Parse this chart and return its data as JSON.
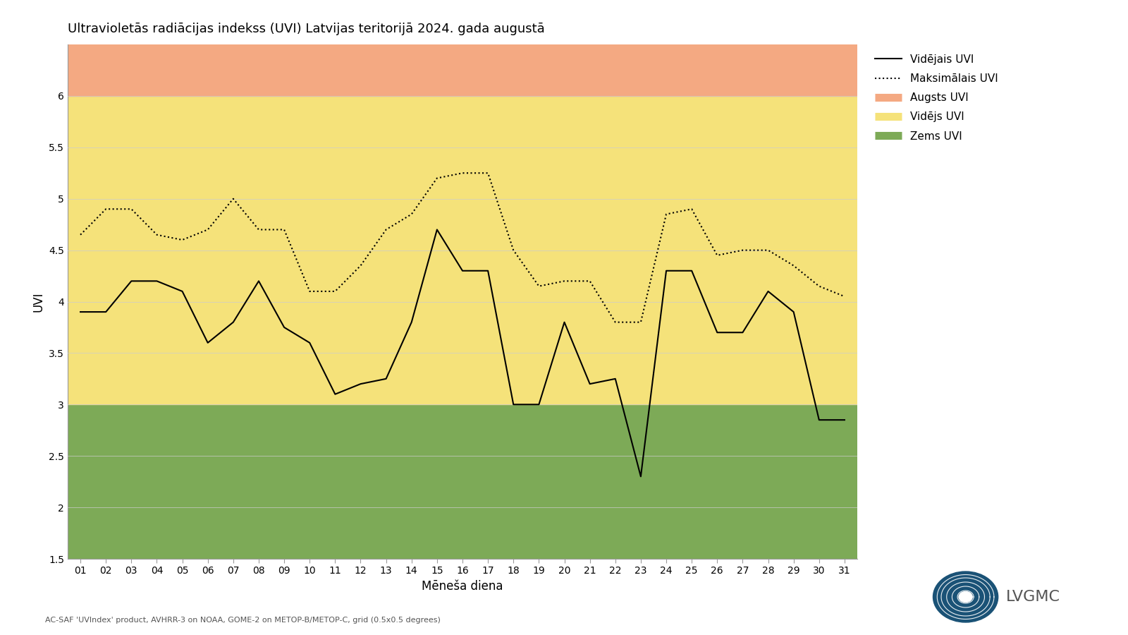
{
  "title": "Ultravioletās radiācijas indekss (UVI) Latvijas teritorijā 2024. gada augustā",
  "xlabel": "Mēneša diena",
  "ylabel": "UVI",
  "days": [
    1,
    2,
    3,
    4,
    5,
    6,
    7,
    8,
    9,
    10,
    11,
    12,
    13,
    14,
    15,
    16,
    17,
    18,
    19,
    20,
    21,
    22,
    23,
    24,
    25,
    26,
    27,
    28,
    29,
    30,
    31
  ],
  "videjais": [
    3.9,
    3.9,
    4.2,
    4.2,
    4.1,
    3.6,
    3.8,
    4.2,
    3.75,
    3.6,
    3.1,
    3.2,
    3.25,
    3.8,
    4.7,
    4.3,
    4.3,
    3.0,
    3.0,
    3.8,
    3.2,
    3.25,
    2.3,
    4.3,
    4.3,
    3.7,
    3.7,
    4.1,
    3.9,
    2.85,
    2.85
  ],
  "maksimalais": [
    4.65,
    4.9,
    4.9,
    4.65,
    4.6,
    4.7,
    5.0,
    4.7,
    4.7,
    4.1,
    4.1,
    4.35,
    4.7,
    4.85,
    5.2,
    5.25,
    5.25,
    4.5,
    4.15,
    4.2,
    4.2,
    3.8,
    3.8,
    4.85,
    4.9,
    4.45,
    4.5,
    4.5,
    4.35,
    4.15,
    4.05
  ],
  "zone_low_max": 3.0,
  "zone_mid_max": 6.0,
  "zone_high_min": 6.0,
  "zone_high_max": 6.5,
  "color_low": "#7daa57",
  "color_mid": "#f5e27a",
  "color_high": "#f4a982",
  "ylim_min": 1.5,
  "ylim_max": 6.5,
  "yticks": [
    1.5,
    2.0,
    2.5,
    3.0,
    3.5,
    4.0,
    4.5,
    5.0,
    5.5,
    6.0
  ],
  "line_color": "#000000",
  "footnote": "AC-SAF 'UVIndex' product, AVHRR-3 on NOAA, GOME-2 on METOP-B/METOP-C, grid (0.5x0.5 degrees)",
  "legend_videjais": "Vidējais UVI",
  "legend_maksimalais": "Maksimālais UVI",
  "legend_augsts": "Augsts UVI",
  "legend_videjs": "Vidējs UVI",
  "legend_zems": "Zems UVI",
  "bg_color": "#ffffff"
}
